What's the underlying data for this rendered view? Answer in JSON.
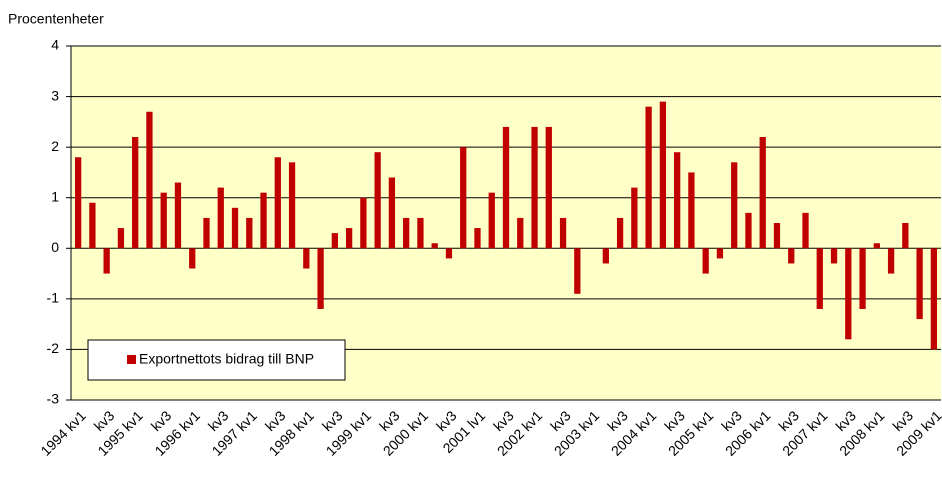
{
  "chart_data": {
    "type": "bar",
    "y_axis_label": "Procentenheter",
    "categories": [
      "1994 kv1",
      null,
      "kv3",
      null,
      "1995 kv1",
      null,
      "kv3",
      null,
      "1996 kv1",
      null,
      "kv3",
      null,
      "1997 kv1",
      null,
      "kv3",
      null,
      "1998 kv1",
      null,
      "kv3",
      null,
      "1999 kv1",
      null,
      "kv3",
      null,
      "2000 kv1",
      null,
      "kv3",
      null,
      "2001 lv1",
      null,
      "kv3",
      null,
      "2002 kv1",
      null,
      "kv3",
      null,
      "2003 kv1",
      null,
      "kv3",
      null,
      "2004 kv1",
      null,
      "kv3",
      null,
      "2005 kv1",
      null,
      "kv3",
      null,
      "2006 kv1",
      null,
      "kv3",
      null,
      "2007 kv1",
      null,
      "kv3",
      null,
      "2008 kv1",
      null,
      "kv3",
      null,
      "2009 kv1"
    ],
    "series": [
      {
        "name": "Exportnettots bidrag till BNP",
        "color": "#c00000",
        "values": [
          1.8,
          0.9,
          -0.5,
          0.4,
          2.2,
          2.7,
          1.1,
          1.3,
          -0.4,
          0.6,
          1.2,
          0.8,
          0.6,
          1.1,
          1.8,
          1.7,
          -0.4,
          -1.2,
          0.3,
          0.4,
          1.0,
          1.9,
          1.4,
          0.6,
          0.6,
          0.1,
          -0.2,
          2.0,
          0.4,
          1.1,
          2.4,
          0.6,
          2.4,
          2.4,
          0.6,
          -0.9,
          0,
          -0.3,
          0.6,
          1.2,
          2.8,
          2.9,
          1.9,
          1.5,
          -0.5,
          -0.2,
          1.7,
          0.7,
          2.2,
          0.5,
          -0.3,
          0.7,
          -1.2,
          -0.3,
          -1.8,
          -1.2,
          0.1,
          -0.5,
          0.5,
          -1.4,
          -2.0
        ]
      }
    ],
    "ylim": [
      -3,
      4
    ],
    "yticks": [
      -3,
      -2,
      -1,
      0,
      1,
      2,
      3,
      4
    ],
    "grid": true,
    "legend": "lower-left",
    "background": "#ffffc8"
  }
}
